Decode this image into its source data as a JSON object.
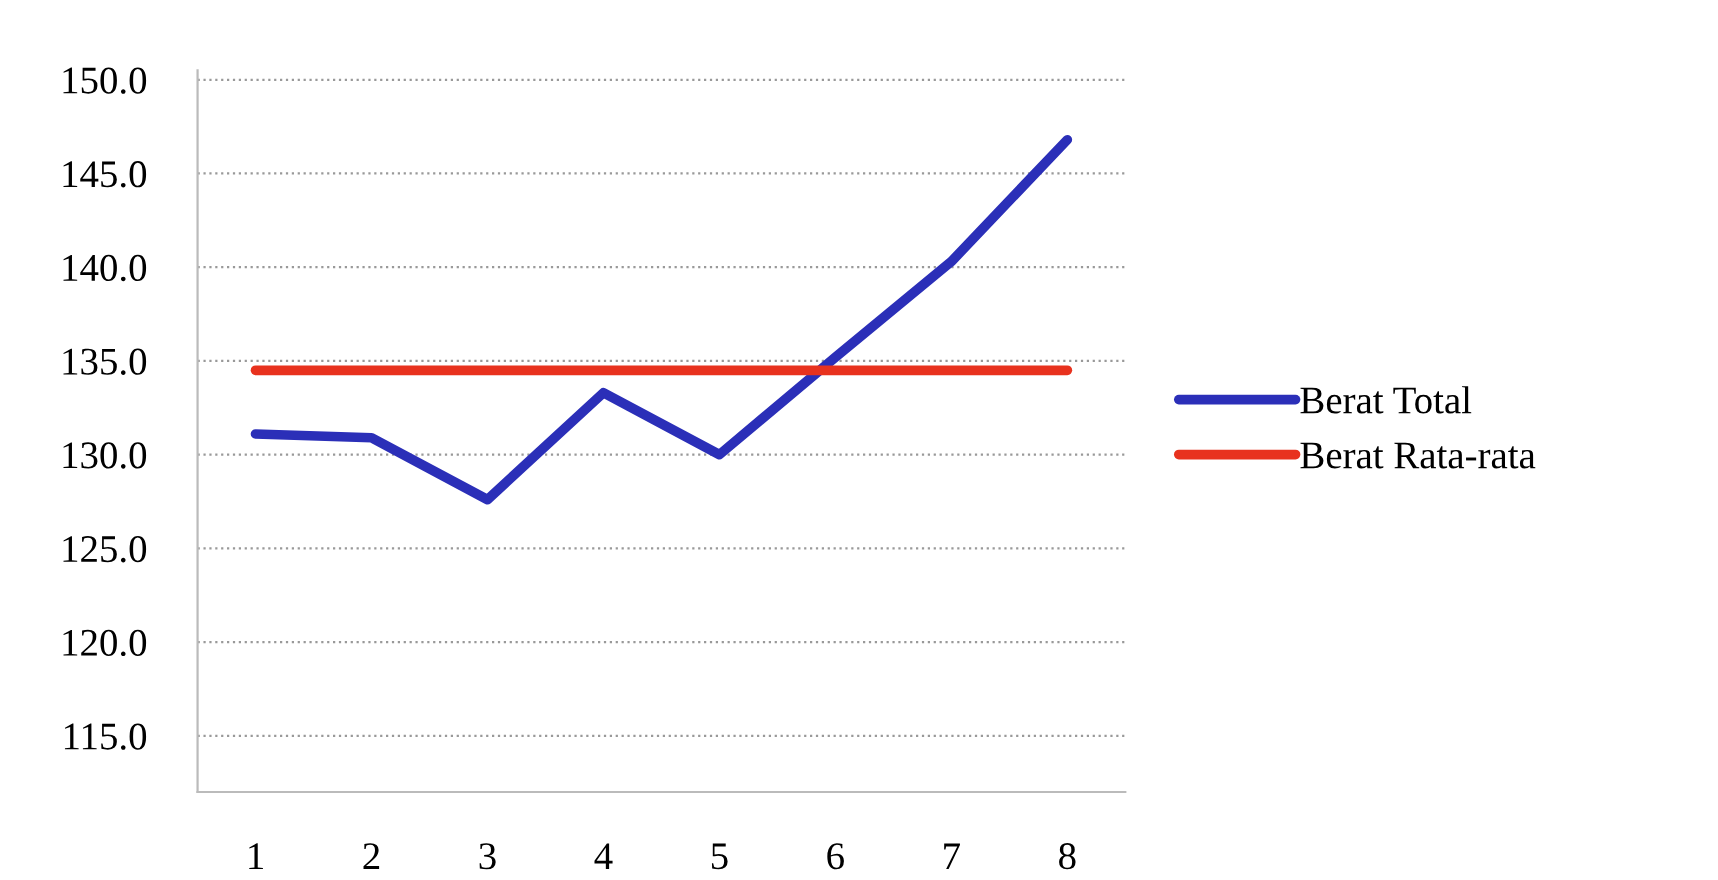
{
  "chart_data": {
    "type": "line",
    "categories": [
      "1",
      "2",
      "3",
      "4",
      "5",
      "6",
      "7",
      "8"
    ],
    "series": [
      {
        "name": "Berat Total",
        "color": "#2b2fb8",
        "values": [
          131.1,
          130.9,
          127.6,
          133.3,
          130.0,
          135.2,
          140.3,
          146.8
        ]
      },
      {
        "name": "Berat Rata-rata",
        "color": "#e8321e",
        "values": [
          134.5,
          134.5,
          134.5,
          134.5,
          134.5,
          134.5,
          134.5,
          134.5
        ]
      }
    ],
    "ylim": [
      112,
      150.5
    ],
    "yticks": [
      {
        "value": 115,
        "label": "115.0"
      },
      {
        "value": 120,
        "label": "120.0"
      },
      {
        "value": 125,
        "label": "125.0"
      },
      {
        "value": 130,
        "label": "130.0"
      },
      {
        "value": 135,
        "label": "135.0"
      },
      {
        "value": 140,
        "label": "140.0"
      },
      {
        "value": 145,
        "label": "145.0"
      },
      {
        "value": 150,
        "label": "150.0"
      }
    ],
    "grid": "y",
    "legend": "right",
    "marker": "none",
    "line_style": "solid"
  }
}
